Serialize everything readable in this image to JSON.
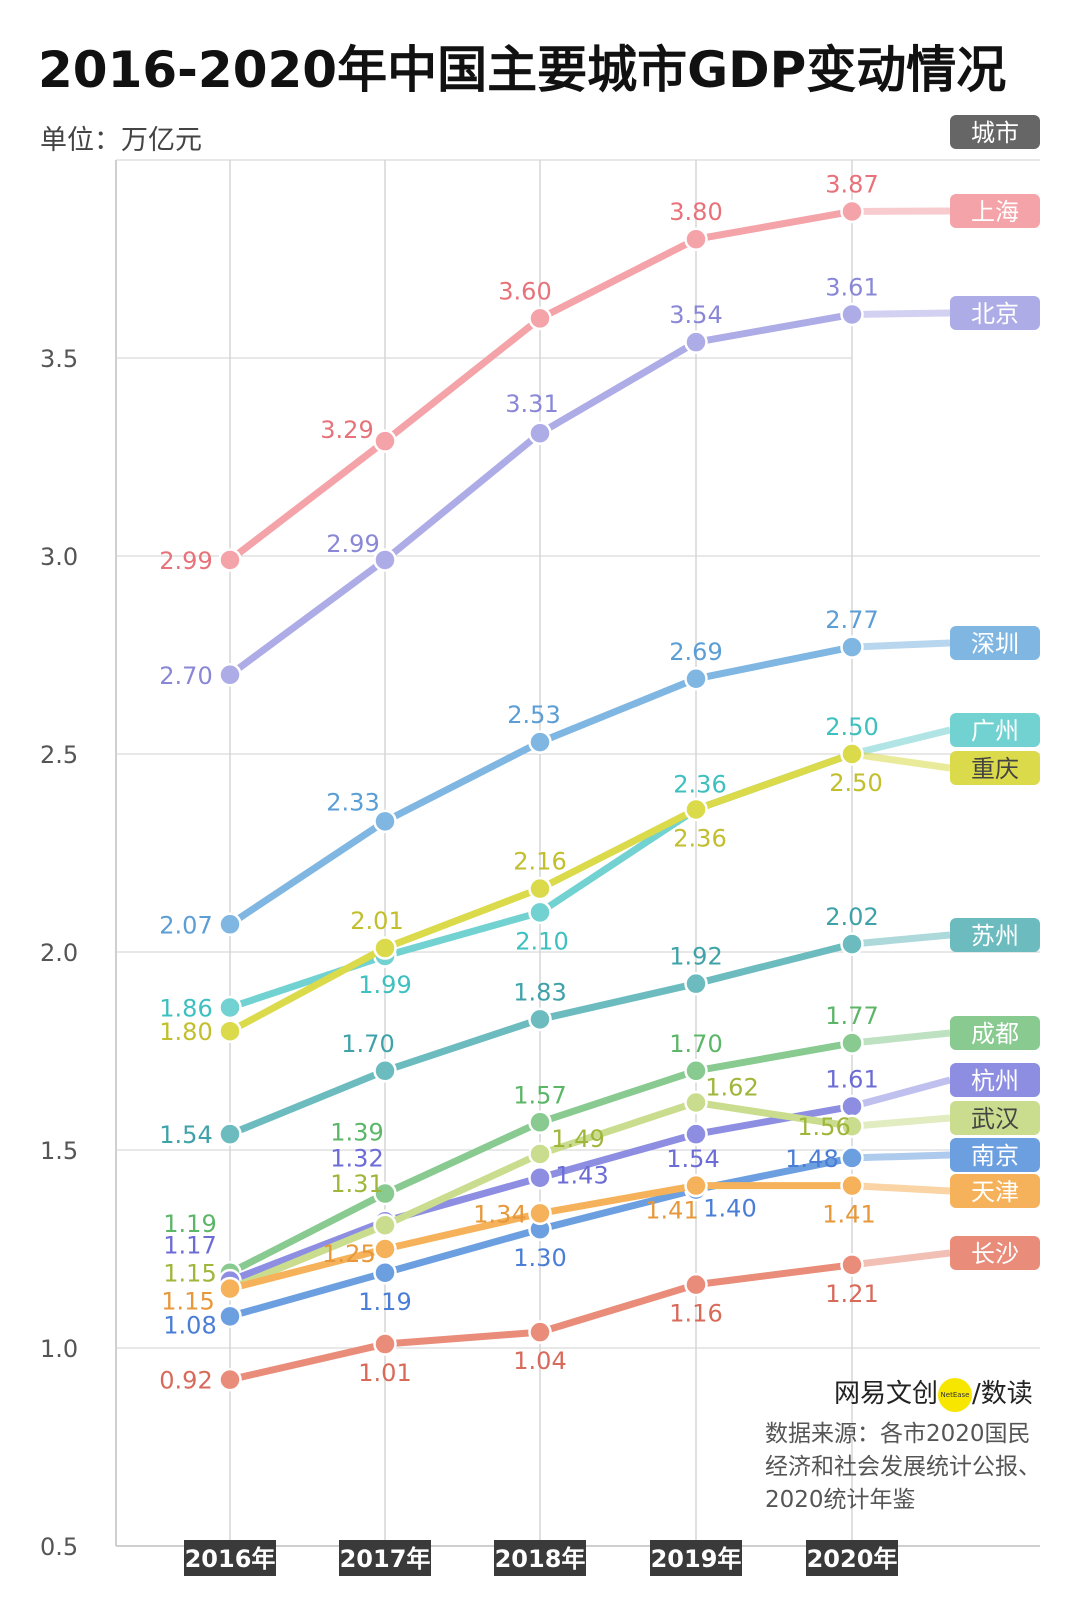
{
  "title": "2016-2020年中国主要城市GDP变动情况",
  "unit_label": "单位：万亿元",
  "legend_header": "城市",
  "logo": {
    "brand": "网易文创",
    "badge": "NetEase",
    "sub": "/数读"
  },
  "source_lines": [
    "数据来源：各市2020国民",
    "经济和社会发展统计公报、",
    "2020统计年鉴"
  ],
  "chart_data": {
    "type": "line",
    "title": "2016-2020年中国主要城市GDP变动情况",
    "ylabel": "单位：万亿元",
    "categories": [
      "2016年",
      "2017年",
      "2018年",
      "2019年",
      "2020年"
    ],
    "ylim": [
      0.5,
      3.9
    ],
    "yticks": [
      "0.5",
      "1.0",
      "1.5",
      "2.0",
      "2.5",
      "3.0",
      "3.5"
    ],
    "grid": true,
    "legend_placement": "right",
    "series": [
      {
        "name": "上海",
        "values": [
          2.99,
          3.29,
          3.6,
          3.8,
          3.87
        ],
        "color": "#f4a3a8",
        "label_color": "#e8727a"
      },
      {
        "name": "北京",
        "values": [
          2.7,
          2.99,
          3.31,
          3.54,
          3.61
        ],
        "color": "#aeace6",
        "label_color": "#8a88d6"
      },
      {
        "name": "深圳",
        "values": [
          2.07,
          2.33,
          2.53,
          2.69,
          2.77
        ],
        "color": "#80b6e2",
        "label_color": "#5b9ed6"
      },
      {
        "name": "广州",
        "values": [
          1.86,
          1.99,
          2.1,
          2.36,
          2.5
        ],
        "color": "#72d1d1",
        "label_color": "#3ec0c0"
      },
      {
        "name": "重庆",
        "values": [
          1.8,
          2.01,
          2.16,
          2.36,
          2.5
        ],
        "color": "#dada4a",
        "label_color": "#c2be2c"
      },
      {
        "name": "苏州",
        "values": [
          1.54,
          1.7,
          1.83,
          1.92,
          2.02
        ],
        "color": "#6cbbbe",
        "label_color": "#3ea2a8"
      },
      {
        "name": "成都",
        "values": [
          1.19,
          1.39,
          1.57,
          1.7,
          1.77
        ],
        "color": "#88ca90",
        "label_color": "#5cb668"
      },
      {
        "name": "杭州",
        "values": [
          1.17,
          1.32,
          1.43,
          1.54,
          1.61
        ],
        "color": "#8d8de2",
        "label_color": "#6c6cd6"
      },
      {
        "name": "武汉",
        "values": [
          1.15,
          1.31,
          1.49,
          1.62,
          1.56
        ],
        "color": "#cadd8e",
        "label_color": "#9fb63a"
      },
      {
        "name": "南京",
        "values": [
          1.08,
          1.19,
          1.3,
          1.4,
          1.48
        ],
        "color": "#6c9fe0",
        "label_color": "#4a7ed6"
      },
      {
        "name": "天津",
        "values": [
          1.15,
          1.25,
          1.34,
          1.41,
          1.41
        ],
        "color": "#f6b25a",
        "label_color": "#e6983a"
      },
      {
        "name": "长沙",
        "values": [
          0.92,
          1.01,
          1.04,
          1.16,
          1.21
        ],
        "color": "#e98c7a",
        "label_color": "#d86a5a"
      }
    ]
  }
}
